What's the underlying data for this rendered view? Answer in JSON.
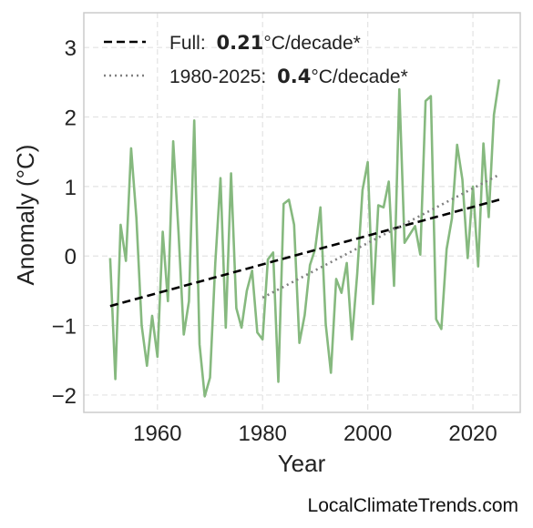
{
  "chart_data": {
    "type": "line",
    "xlabel": "Year",
    "ylabel": "Anomaly (°C)",
    "xlim": [
      1946,
      2029
    ],
    "ylim": [
      -2.25,
      3.5
    ],
    "xticks": [
      1960,
      1980,
      2000,
      2020
    ],
    "yticks": [
      -2,
      -1,
      0,
      1,
      2,
      3
    ],
    "grid": true,
    "legend_position": "top-left",
    "series": [
      {
        "type": "line",
        "color": "#86b97f",
        "x": [
          1951,
          1952,
          1953,
          1954,
          1955,
          1956,
          1957,
          1958,
          1959,
          1960,
          1961,
          1962,
          1963,
          1964,
          1965,
          1966,
          1967,
          1968,
          1969,
          1970,
          1971,
          1972,
          1973,
          1974,
          1975,
          1976,
          1977,
          1978,
          1979,
          1980,
          1981,
          1982,
          1983,
          1984,
          1985,
          1986,
          1987,
          1988,
          1989,
          1990,
          1991,
          1992,
          1993,
          1994,
          1995,
          1996,
          1997,
          1998,
          1999,
          2000,
          2001,
          2002,
          2003,
          2004,
          2005,
          2006,
          2007,
          2008,
          2009,
          2010,
          2011,
          2012,
          2013,
          2014,
          2015,
          2016,
          2017,
          2018,
          2019,
          2020,
          2021,
          2022,
          2023,
          2024,
          2025
        ],
        "y": [
          -0.03,
          -1.77,
          0.45,
          -0.07,
          1.55,
          0.55,
          -1.0,
          -1.58,
          -0.86,
          -1.45,
          0.35,
          -0.65,
          1.65,
          0.35,
          -1.13,
          -0.65,
          1.95,
          -1.27,
          -2.02,
          -1.75,
          -0.1,
          1.12,
          -1.03,
          1.19,
          -0.75,
          -1.03,
          -0.5,
          -0.21,
          -1.1,
          -1.2,
          -0.05,
          0.05,
          -1.81,
          0.75,
          0.81,
          0.45,
          -1.25,
          -0.85,
          -0.13,
          0.1,
          0.7,
          -0.98,
          -1.68,
          -0.33,
          -0.53,
          -0.1,
          -1.2,
          -0.25,
          0.95,
          1.35,
          -0.69,
          0.73,
          0.7,
          1.07,
          -0.43,
          2.4,
          0.19,
          0.31,
          0.43,
          0.02,
          2.23,
          2.3,
          -0.91,
          -1.05,
          0.1,
          0.54,
          1.6,
          1.1,
          -0.03,
          1.0,
          -0.15,
          1.62,
          0.56,
          2.03,
          2.54
        ]
      },
      {
        "type": "trend",
        "name": "Full:",
        "rate": "0.21",
        "unit": "°C/decade*",
        "style": "dashed",
        "color": "#000000",
        "x": [
          1951,
          2025
        ],
        "y": [
          -0.72,
          0.81
        ]
      },
      {
        "type": "trend",
        "name": "1980-2025:",
        "rate": "0.4",
        "unit": "°C/decade*",
        "style": "dotted",
        "color": "#808080",
        "x": [
          1980,
          2025
        ],
        "y": [
          -0.6,
          1.17
        ]
      }
    ]
  },
  "source": "LocalClimateTrends.com"
}
